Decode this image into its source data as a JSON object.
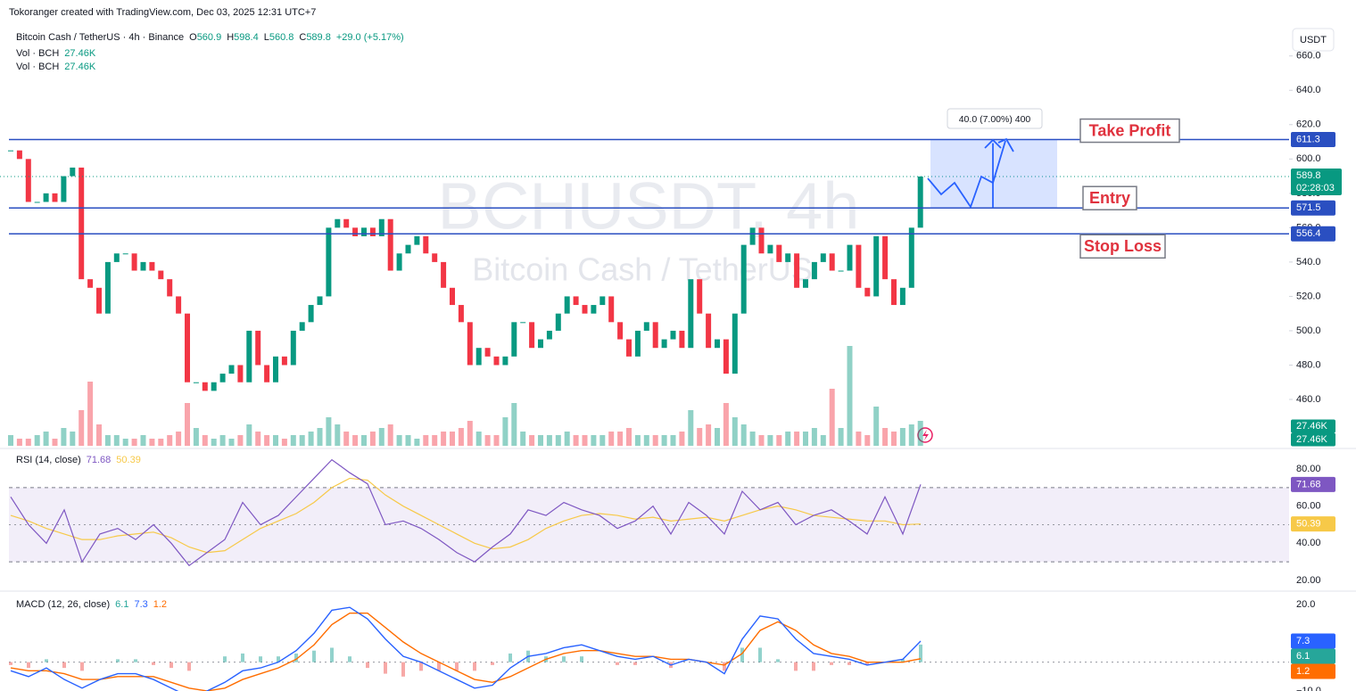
{
  "header": "Tokoranger created with TradingView.com, Dec 03, 2025 12:31 UTC+7",
  "currency": "USDT",
  "legend": {
    "symbol": "Bitcoin Cash / TetherUS · 4h · Binance",
    "ohlc": [
      {
        "k": "O",
        "v": "560.9"
      },
      {
        "k": "H",
        "v": "598.4"
      },
      {
        "k": "L",
        "v": "560.8"
      },
      {
        "k": "C",
        "v": "589.8"
      }
    ],
    "change": "+29.0 (+5.17%)",
    "volumes": [
      {
        "name": "Vol · BCH",
        "value": "27.46K"
      },
      {
        "name": "Vol · BCH",
        "value": "27.46K"
      }
    ]
  },
  "watermark": {
    "symbol": "BCHUSDT, 4h",
    "name": "Bitcoin Cash / TetherUS"
  },
  "main": {
    "ylim": [
      433,
      677
    ],
    "yticks": [
      {
        "value": 460,
        "label": "460.0"
      },
      {
        "value": 480,
        "label": "480.0"
      },
      {
        "value": 500,
        "label": "500.0"
      },
      {
        "value": 520,
        "label": "520.0"
      },
      {
        "value": 540,
        "label": "540.0"
      },
      {
        "value": 560,
        "label": "560.0"
      },
      {
        "value": 580,
        "label": "580.0"
      },
      {
        "value": 600,
        "label": "600.0"
      },
      {
        "value": 620,
        "label": "620.0"
      },
      {
        "value": 640,
        "label": "640.0"
      },
      {
        "value": 660,
        "label": "660.0"
      }
    ],
    "closes": [
      605,
      600,
      575,
      575,
      580,
      575,
      590,
      595,
      530,
      525,
      510,
      540,
      545,
      545,
      535,
      540,
      535,
      530,
      520,
      510,
      470,
      470,
      465,
      470,
      475,
      480,
      470,
      500,
      480,
      470,
      485,
      480,
      500,
      505,
      515,
      520,
      560,
      565,
      560,
      555,
      560,
      555,
      565,
      535,
      545,
      550,
      555,
      545,
      540,
      525,
      515,
      505,
      480,
      490,
      485,
      480,
      485,
      505,
      505,
      490,
      495,
      500,
      510,
      520,
      515,
      510,
      515,
      520,
      505,
      495,
      485,
      500,
      505,
      490,
      495,
      500,
      490,
      530,
      510,
      490,
      495,
      475,
      510,
      550,
      560,
      545,
      550,
      540,
      545,
      525,
      530,
      540,
      545,
      535,
      535,
      550,
      525,
      520,
      555,
      530,
      515,
      525,
      560,
      589.8
    ],
    "volumes": [
      3,
      2,
      2,
      3,
      4,
      2,
      5,
      4,
      10,
      18,
      6,
      3,
      3,
      2,
      2,
      3,
      2,
      2,
      3,
      4,
      12,
      5,
      3,
      2,
      3,
      2,
      3,
      6,
      4,
      3,
      3,
      2,
      3,
      3,
      4,
      5,
      8,
      6,
      4,
      3,
      3,
      4,
      5,
      6,
      3,
      3,
      2,
      3,
      3,
      4,
      4,
      5,
      7,
      4,
      3,
      3,
      8,
      12,
      4,
      3,
      3,
      3,
      3,
      4,
      3,
      3,
      3,
      3,
      4,
      4,
      5,
      3,
      3,
      3,
      3,
      3,
      4,
      10,
      5,
      6,
      5,
      12,
      8,
      6,
      4,
      3,
      3,
      3,
      4,
      4,
      4,
      5,
      3,
      16,
      5,
      28,
      4,
      3,
      11,
      5,
      4,
      5,
      6,
      7
    ],
    "vlim": [
      0,
      30
    ],
    "countdown": "02:28:03",
    "volume_tags": [
      "27.46K",
      "27.46K"
    ],
    "levels": [
      {
        "name": "Take Profit",
        "value": 611.3
      },
      {
        "name": "Entry",
        "value": 571.5
      },
      {
        "name": "Stop Loss",
        "value": 556.4
      }
    ],
    "measure": "40.0 (7.00%) 400"
  },
  "rsi": {
    "title": "RSI (14, close)",
    "ylim": [
      14.7,
      90.1
    ],
    "yticks": [
      {
        "value": 20,
        "label": "20.00"
      },
      {
        "value": 40,
        "label": "40.00"
      },
      {
        "value": 60,
        "label": "60.00"
      },
      {
        "value": 80,
        "label": "80.00"
      }
    ],
    "band": [
      30,
      70
    ],
    "middle": 50,
    "values": [
      65,
      50,
      40,
      58,
      30,
      45,
      48,
      42,
      50,
      40,
      28,
      35,
      42,
      62,
      50,
      55,
      65,
      75,
      85,
      78,
      72,
      50,
      52,
      48,
      42,
      35,
      30,
      38,
      45,
      58,
      55,
      62,
      58,
      55,
      48,
      52,
      60,
      45,
      62,
      55,
      45,
      68,
      58,
      62,
      50,
      55,
      58,
      52,
      45,
      65,
      45,
      71.68
    ],
    "ma": [
      55,
      52,
      48,
      45,
      42,
      42,
      44,
      45,
      46,
      43,
      38,
      35,
      36,
      42,
      48,
      52,
      56,
      62,
      70,
      75,
      74,
      66,
      60,
      55,
      50,
      45,
      40,
      37,
      38,
      42,
      48,
      52,
      55,
      56,
      55,
      53,
      54,
      52,
      53,
      54,
      52,
      55,
      58,
      60,
      58,
      55,
      54,
      53,
      52,
      52,
      50,
      50.39
    ]
  },
  "macd": {
    "title": "MACD (12, 26, close)",
    "ylim": [
      -10,
      24
    ],
    "yticks": [
      {
        "value": 20,
        "label": "20.0"
      },
      {
        "value": -10,
        "label": "−10.0"
      }
    ],
    "hist": [
      -1,
      -2,
      1,
      -2,
      -3,
      0,
      1,
      1,
      -1,
      -2,
      -3,
      0,
      2,
      3,
      2,
      2,
      3,
      4,
      5,
      2,
      -2,
      -4,
      -5,
      -3,
      -3,
      -3,
      -3,
      -1,
      3,
      4,
      2,
      2,
      2,
      0,
      -1,
      -1,
      0,
      -2,
      0,
      0,
      -3,
      5,
      5,
      1,
      -3,
      -3,
      -1,
      -1,
      -1,
      0,
      1,
      6.1
    ],
    "macd": [
      -3,
      -5,
      -2,
      -6,
      -9,
      -6,
      -4,
      -4,
      -6,
      -9,
      -12,
      -10,
      -7,
      -3,
      -2,
      0,
      4,
      10,
      18,
      19,
      15,
      8,
      2,
      0,
      -3,
      -6,
      -9,
      -8,
      -2,
      2,
      3,
      5,
      6,
      4,
      2,
      1,
      2,
      -1,
      1,
      0,
      -4,
      8,
      16,
      15,
      8,
      3,
      2,
      1,
      -1,
      0,
      1,
      7.3
    ],
    "signal": [
      -2,
      -3,
      -3,
      -4,
      -6,
      -6,
      -5,
      -5,
      -5,
      -7,
      -9,
      -10,
      -9,
      -6,
      -4,
      -2,
      1,
      6,
      13,
      17,
      17,
      12,
      7,
      3,
      0,
      -3,
      -6,
      -7,
      -5,
      -2,
      1,
      3,
      4,
      4,
      3,
      2,
      2,
      1,
      1,
      0,
      -1,
      3,
      11,
      14,
      11,
      6,
      3,
      2,
      0,
      0,
      0,
      1.2
    ]
  }
}
